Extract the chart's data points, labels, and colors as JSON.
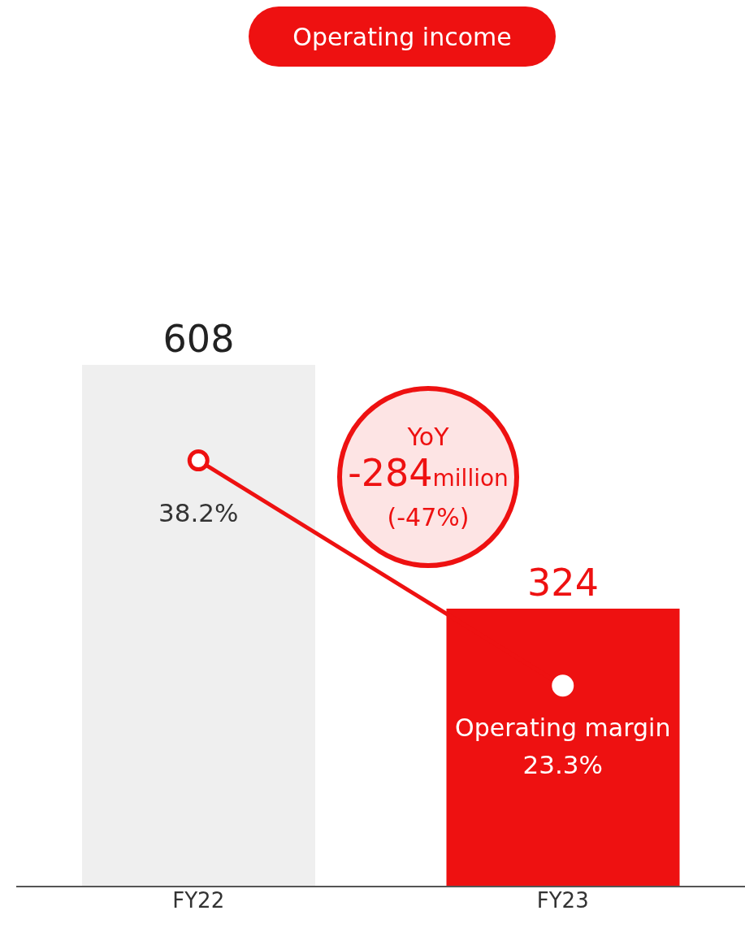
{
  "chart_data": {
    "type": "bar",
    "title": "Operating income",
    "categories": [
      "FY22",
      "FY23"
    ],
    "series": [
      {
        "colors": [
          "#efefef",
          "#ee1111"
        ],
        "values": [
          608,
          324
        ]
      },
      {
        "type": "line",
        "name": "Operating margin",
        "color": "#ee1111",
        "axis": "y2",
        "values": [
          38.2,
          23.3
        ],
        "value_labels": [
          "38.2%",
          "23.3%"
        ]
      }
    ],
    "data_labels": true,
    "marker": "circle",
    "tick_labels": "x",
    "grid": false,
    "legend": false,
    "annotations": [
      "YoY",
      "-284million",
      "(-47%)"
    ]
  }
}
